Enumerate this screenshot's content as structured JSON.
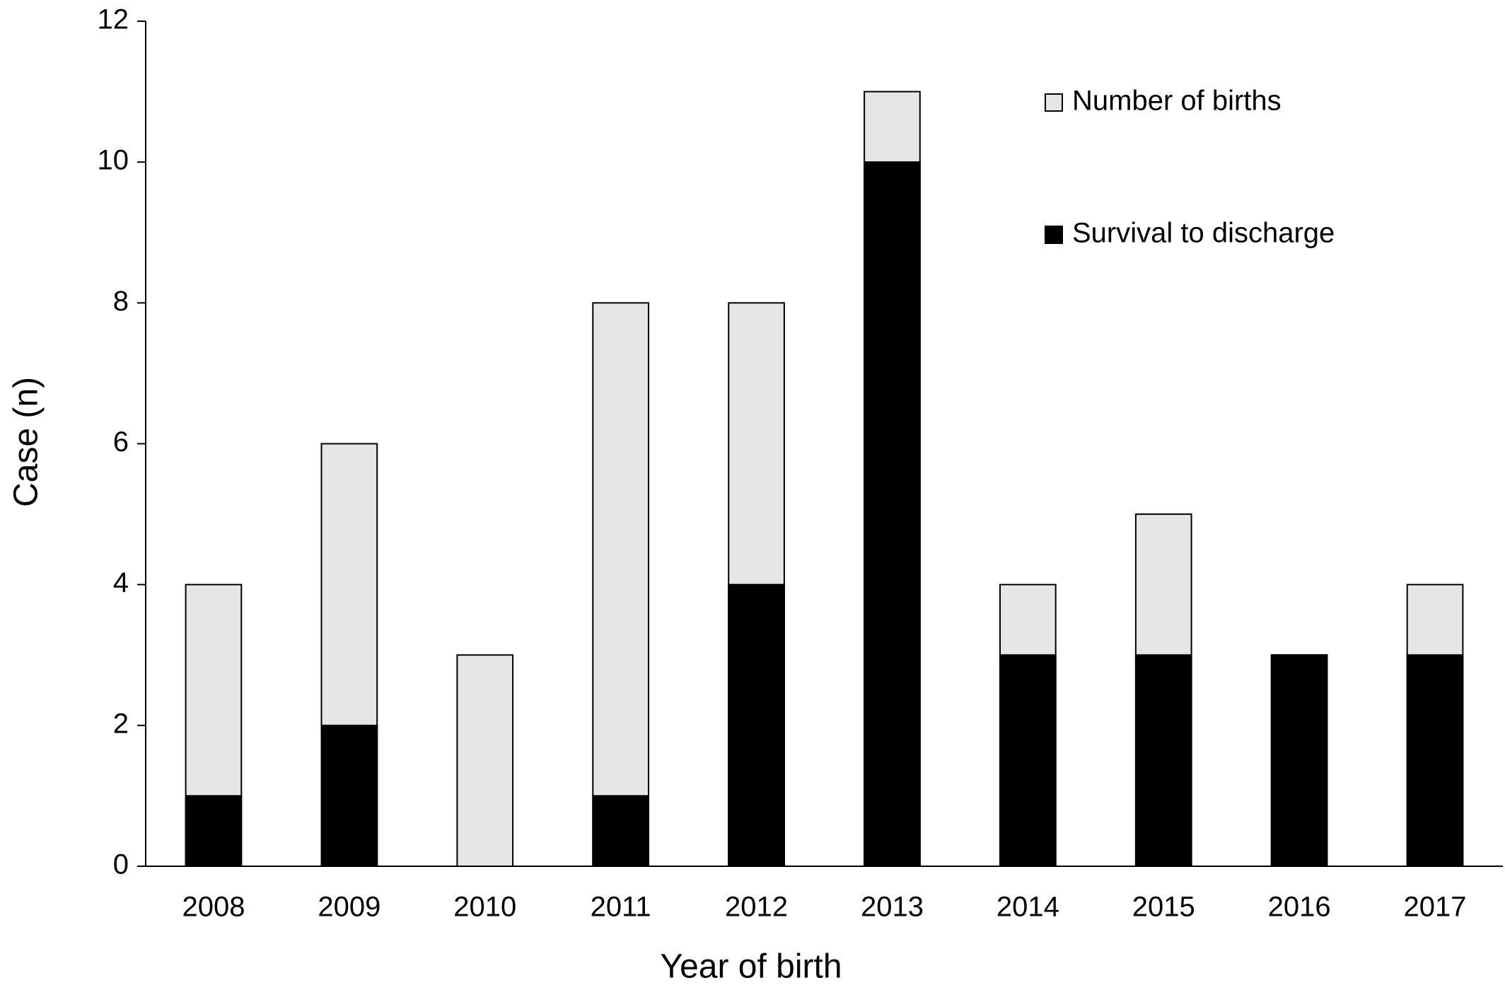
{
  "chart_data": {
    "type": "bar",
    "x_label": "Year of birth",
    "y_label": "Case (n)",
    "categories": [
      "2008",
      "2009",
      "2010",
      "2011",
      "2012",
      "2013",
      "2014",
      "2015",
      "2016",
      "2017"
    ],
    "series": [
      {
        "name": "Number of births",
        "color": "#e6e6e6",
        "values": [
          4,
          6,
          3,
          8,
          8,
          11,
          4,
          5,
          3,
          4
        ]
      },
      {
        "name": "Survival to discharge",
        "color": "#000000",
        "values": [
          1,
          2,
          0,
          1,
          4,
          10,
          3,
          3,
          3,
          3
        ]
      }
    ],
    "ylim": [
      0,
      12
    ],
    "yticks": [
      0,
      2,
      4,
      6,
      8,
      10,
      12
    ],
    "grid": false,
    "legend": "upper right"
  }
}
